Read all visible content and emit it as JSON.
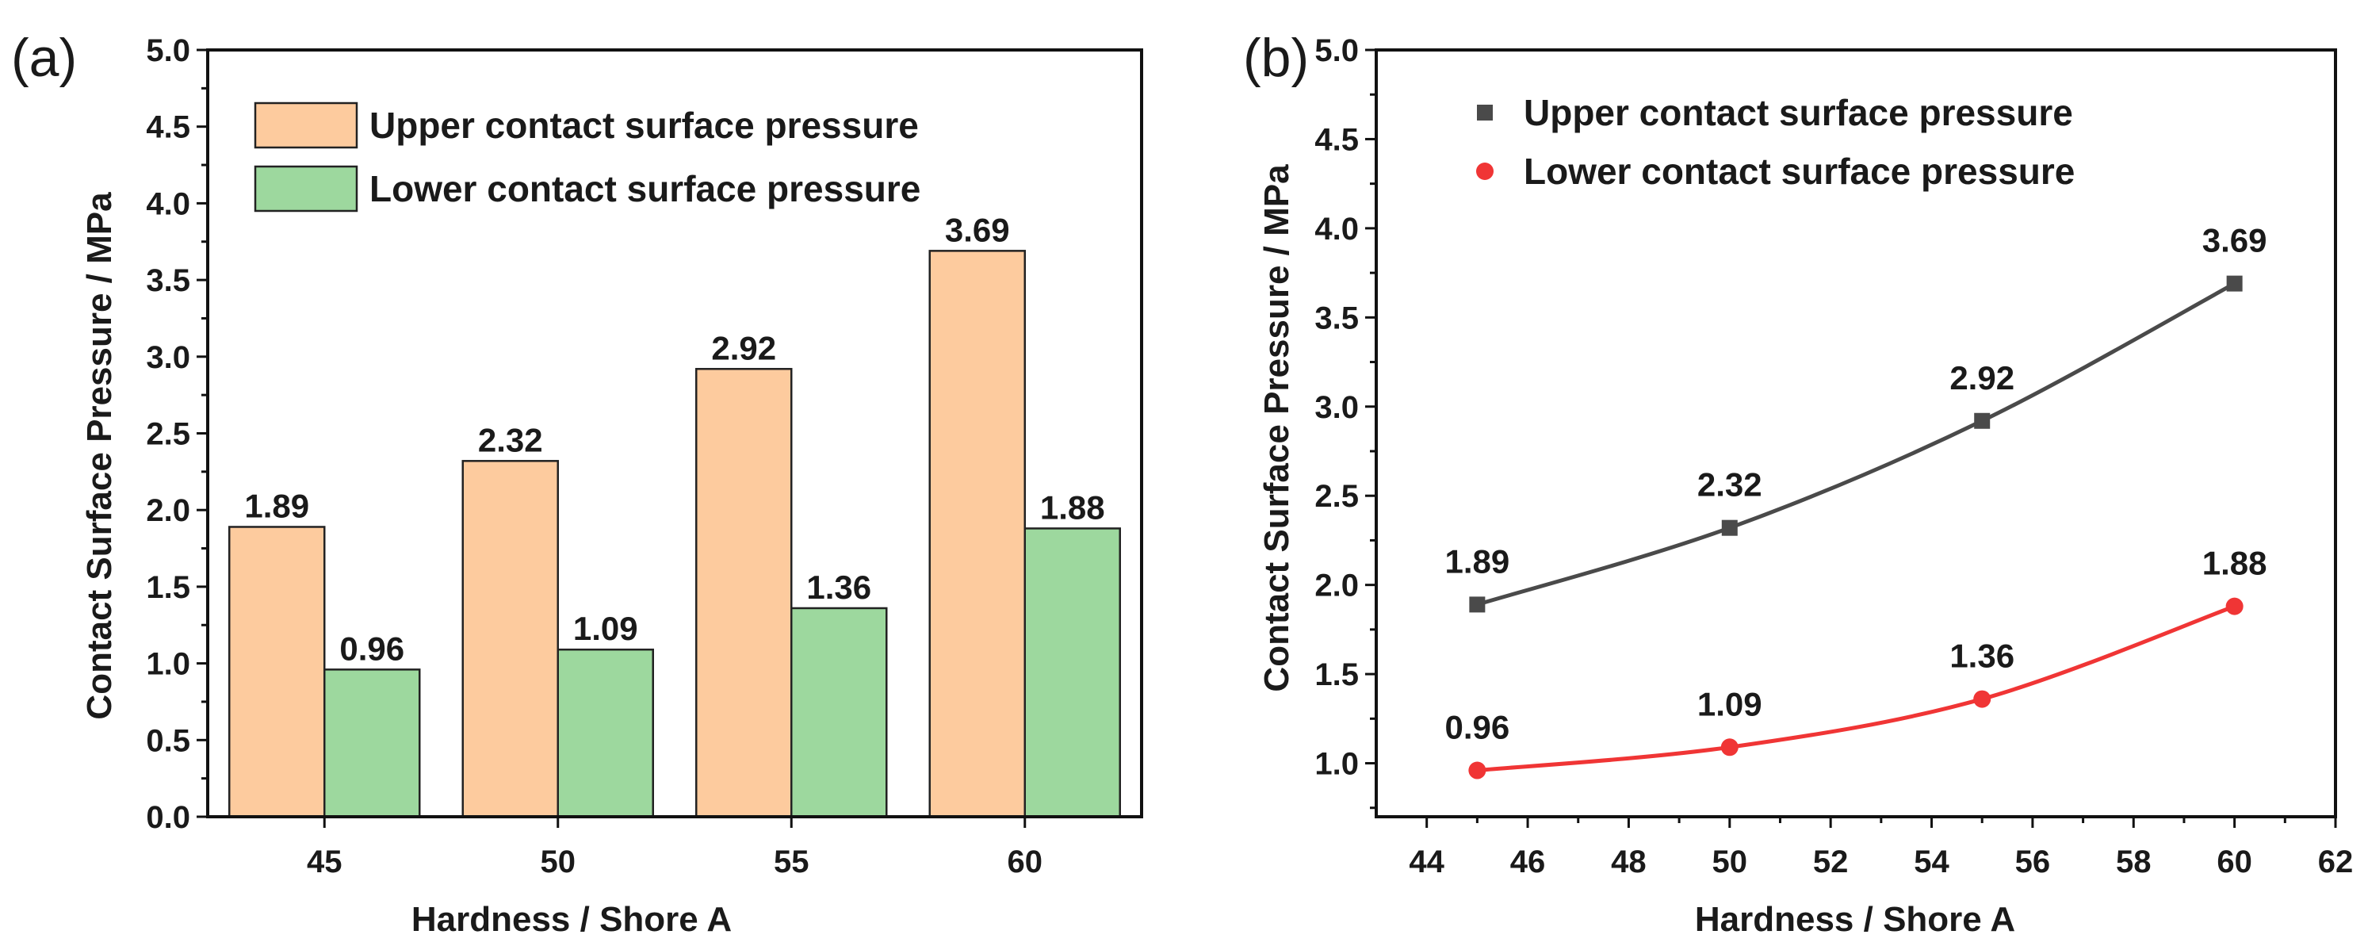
{
  "chart_data": [
    {
      "panel": "(a)",
      "type": "bar",
      "categories": [
        "45",
        "50",
        "55",
        "60"
      ],
      "series": [
        {
          "name": "Upper contact surface pressure",
          "values": [
            1.89,
            2.32,
            2.92,
            3.69
          ],
          "color": "#FDCB9E",
          "labels": [
            "1.89",
            "2.32",
            "2.92",
            "3.69"
          ]
        },
        {
          "name": "Lower contact surface pressure",
          "values": [
            0.96,
            1.09,
            1.36,
            1.88
          ],
          "color": "#9DD89E",
          "labels": [
            "0.96",
            "1.09",
            "1.36",
            "1.88"
          ]
        }
      ],
      "xlabel": "Hardness / Shore A",
      "ylabel": "Contact Surface Pressure / MPa",
      "ylim": [
        0.0,
        5.0
      ],
      "yticks": [
        "0.0",
        "0.5",
        "1.0",
        "1.5",
        "2.0",
        "2.5",
        "3.0",
        "3.5",
        "4.0",
        "4.5",
        "5.0"
      ],
      "legend_position": "top-left",
      "grid": false
    },
    {
      "panel": "(b)",
      "type": "line",
      "x": [
        45,
        50,
        55,
        60
      ],
      "series": [
        {
          "name": "Upper contact surface pressure",
          "values": [
            1.89,
            2.32,
            2.92,
            3.69
          ],
          "color": "#4a4a4a",
          "marker": "square",
          "labels": [
            "1.89",
            "2.32",
            "2.92",
            "3.69"
          ]
        },
        {
          "name": "Lower contact surface pressure",
          "values": [
            0.96,
            1.09,
            1.36,
            1.88
          ],
          "color": "#F03535",
          "marker": "circle",
          "labels": [
            "0.96",
            "1.09",
            "1.36",
            "1.88"
          ]
        }
      ],
      "xlabel": "Hardness / Shore A",
      "ylabel": "Contact Surface Pressure / MPa",
      "xlim": [
        43,
        62
      ],
      "xticks": [
        "44",
        "46",
        "48",
        "50",
        "52",
        "54",
        "56",
        "58",
        "60",
        "62"
      ],
      "ylim": [
        0.7,
        5.0
      ],
      "yticks": [
        "1.0",
        "1.5",
        "2.0",
        "2.5",
        "3.0",
        "3.5",
        "4.0",
        "4.5",
        "5.0"
      ],
      "legend_position": "top-left",
      "grid": false
    }
  ]
}
